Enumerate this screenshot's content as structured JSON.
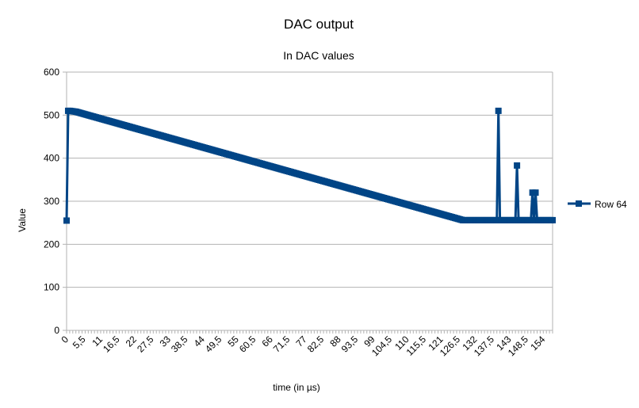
{
  "chart_data": {
    "type": "line",
    "title": "DAC output",
    "subtitle": "In DAC values",
    "xlabel": "time (in µs)",
    "ylabel": "Value",
    "ylim": [
      0,
      600
    ],
    "yticks": [
      "0",
      "100",
      "200",
      "300",
      "400",
      "500",
      "600"
    ],
    "xlim": [
      0,
      157
    ],
    "xticks": [
      "0",
      "5,5",
      "11",
      "16,5",
      "22",
      "27,5",
      "33",
      "38,5",
      "44",
      "49,5",
      "55",
      "60,5",
      "66",
      "71,5",
      "77",
      "82,5",
      "88",
      "93,5",
      "99",
      "104,5",
      "110",
      "115,5",
      "121",
      "126,5",
      "132",
      "137,5",
      "143",
      "148,5",
      "154"
    ],
    "xtick_values": [
      0,
      5.5,
      11,
      16.5,
      22,
      27.5,
      33,
      38.5,
      44,
      49.5,
      55,
      60.5,
      66,
      71.5,
      77,
      82.5,
      88,
      93.5,
      99,
      104.5,
      110,
      115.5,
      121,
      126.5,
      132,
      137.5,
      143,
      148.5,
      154
    ],
    "grid": "horizontal",
    "legend_position": "right",
    "series": [
      {
        "name": "Row 64",
        "color": "#004586",
        "x": [
          0,
          0.5,
          1,
          3,
          128,
          139,
          139.5,
          140,
          145,
          145.5,
          146,
          150,
          150.5,
          151,
          151.5,
          152,
          152.5,
          157
        ],
        "values": [
          255,
          510,
          510,
          508,
          256,
          256,
          510,
          256,
          256,
          383,
          256,
          256,
          320,
          256,
          320,
          256,
          256,
          256
        ]
      }
    ]
  }
}
